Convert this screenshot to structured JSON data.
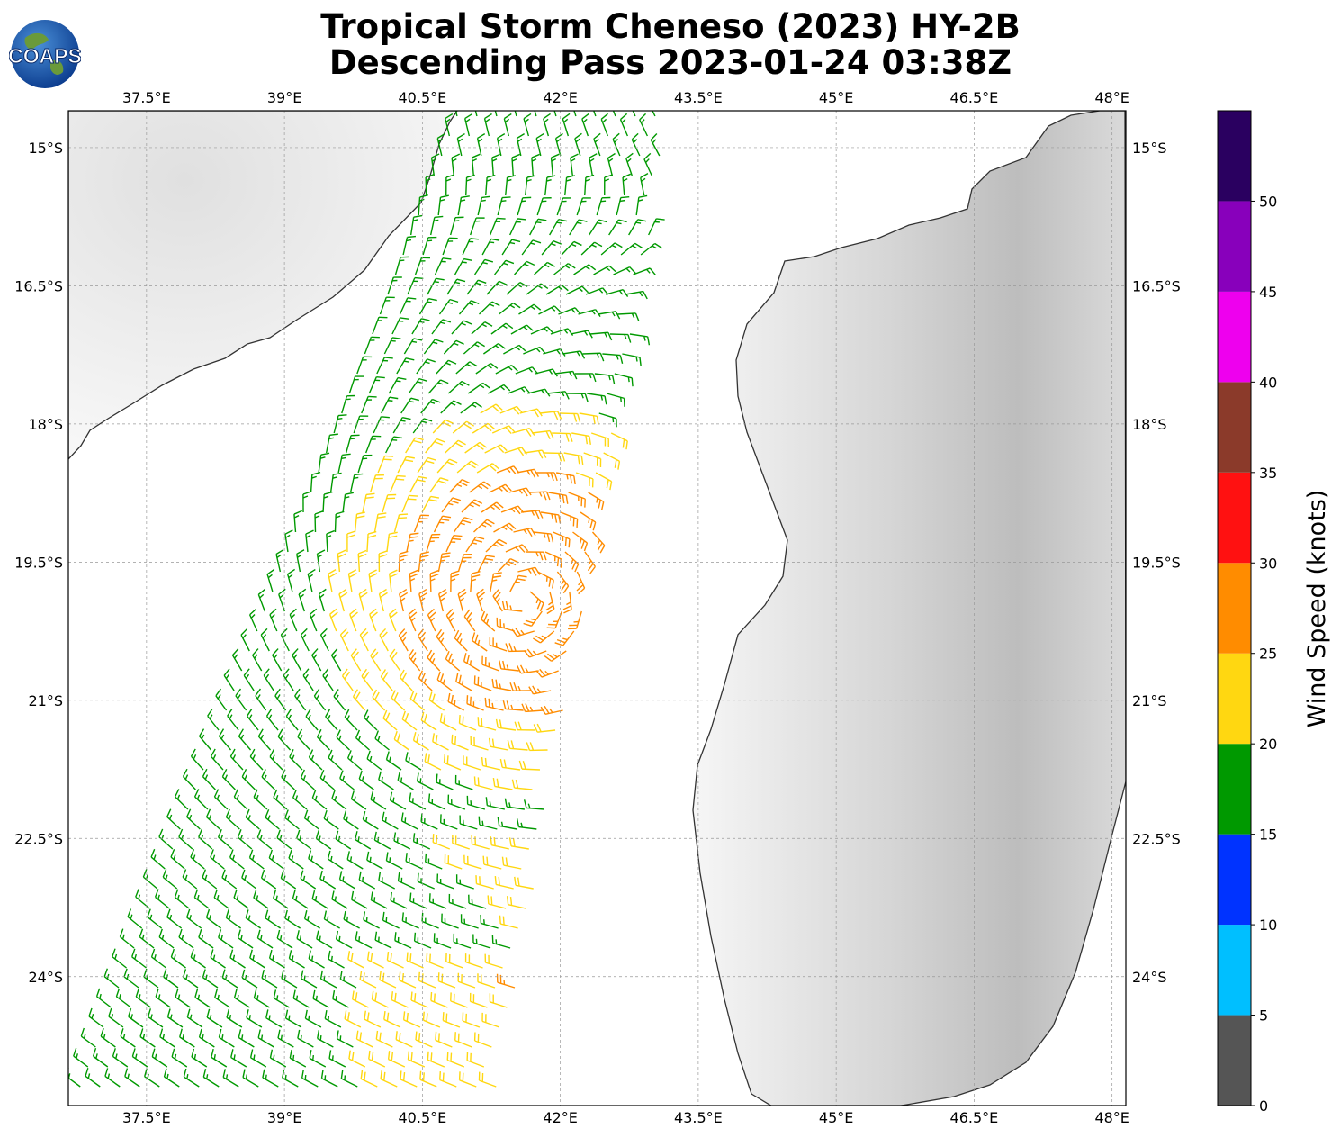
{
  "title": {
    "line1": "Tropical Storm Cheneso (2023) HY-2B",
    "line2": "Descending Pass 2023-01-24 03:38Z"
  },
  "logo": {
    "text": "COAPS",
    "icon": "globe-icon"
  },
  "map": {
    "lon_ticks": [
      "37.5°E",
      "39°E",
      "40.5°E",
      "42°E",
      "43.5°E",
      "45°E",
      "46.5°E",
      "48°E"
    ],
    "lat_ticks": [
      "15°S",
      "16.5°S",
      "18°S",
      "19.5°S",
      "21°S",
      "22.5°S",
      "24°S"
    ],
    "lon_range": [
      36.65,
      48.15
    ],
    "lat_range": [
      -25.4,
      -14.6
    ],
    "background": "grayscale topography",
    "gridlines": true
  },
  "colorbar": {
    "label": "Wind Speed (knots)",
    "ticks": [
      "0",
      "5",
      "10",
      "15",
      "20",
      "25",
      "30",
      "35",
      "40",
      "45",
      "50"
    ],
    "bins": [
      {
        "from": 0,
        "to": 5,
        "color": "#555555"
      },
      {
        "from": 5,
        "to": 10,
        "color": "#00bfff"
      },
      {
        "from": 10,
        "to": 15,
        "color": "#0033ff"
      },
      {
        "from": 15,
        "to": 20,
        "color": "#009900"
      },
      {
        "from": 20,
        "to": 25,
        "color": "#ffd711"
      },
      {
        "from": 25,
        "to": 30,
        "color": "#ff8c00"
      },
      {
        "from": 30,
        "to": 35,
        "color": "#ff1111"
      },
      {
        "from": 35,
        "to": 40,
        "color": "#8b3a2a"
      },
      {
        "from": 40,
        "to": 45,
        "color": "#ee00ee"
      },
      {
        "from": 45,
        "to": 50,
        "color": "#8800bb"
      },
      {
        "from": 50,
        "to": 55,
        "color": "#2a0060"
      }
    ]
  },
  "wind_field": {
    "center_lon": 41.6,
    "center_lat": -19.9,
    "swath_edges_lon": {
      "north_west": 40.9,
      "north_east": 43.2,
      "south_west": 36.7,
      "south_east": 41.3
    }
  }
}
